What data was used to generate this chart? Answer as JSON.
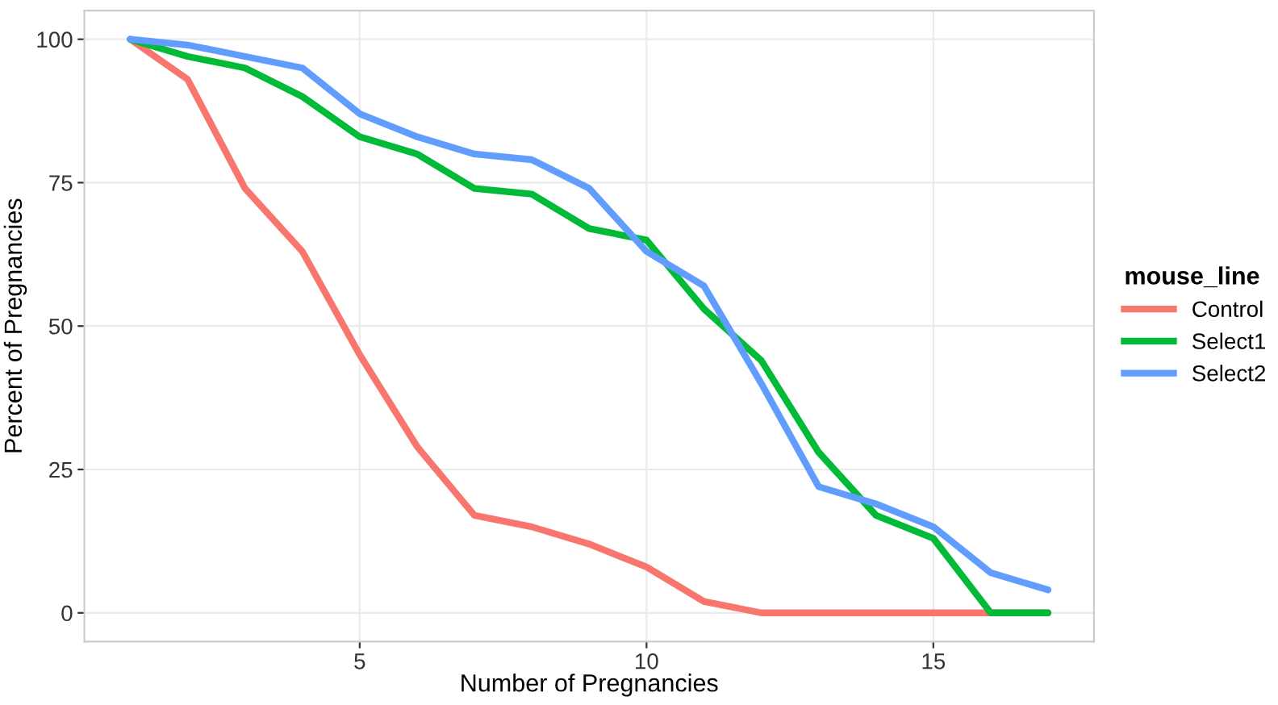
{
  "chart_data": {
    "type": "line",
    "xlabel": "Number of Pregnancies",
    "ylabel": "Percent of Pregnancies",
    "legend_title": "mouse_line",
    "legend": "right",
    "grid": true,
    "x": [
      1,
      2,
      3,
      4,
      5,
      6,
      7,
      8,
      9,
      10,
      11,
      12,
      13,
      14,
      15,
      16,
      17
    ],
    "xlim": [
      0.2,
      17.8
    ],
    "xticks": [
      5,
      10,
      15
    ],
    "ylim": [
      -5,
      105
    ],
    "yticks": [
      0,
      25,
      50,
      75,
      100
    ],
    "series": [
      {
        "name": "Control",
        "color": "#f8766d",
        "values": [
          100,
          93,
          74,
          63,
          45,
          29,
          17,
          15,
          12,
          8,
          2,
          0,
          0,
          0,
          0,
          0,
          0
        ]
      },
      {
        "name": "Select1",
        "color": "#00ba38",
        "values": [
          100,
          97,
          95,
          90,
          83,
          80,
          74,
          73,
          67,
          65,
          53,
          44,
          28,
          17,
          13,
          0,
          0
        ]
      },
      {
        "name": "Select2",
        "color": "#619cff",
        "values": [
          100,
          99,
          97,
          95,
          87,
          83,
          80,
          79,
          74,
          63,
          57,
          40,
          22,
          19,
          15,
          7,
          4
        ]
      }
    ]
  }
}
